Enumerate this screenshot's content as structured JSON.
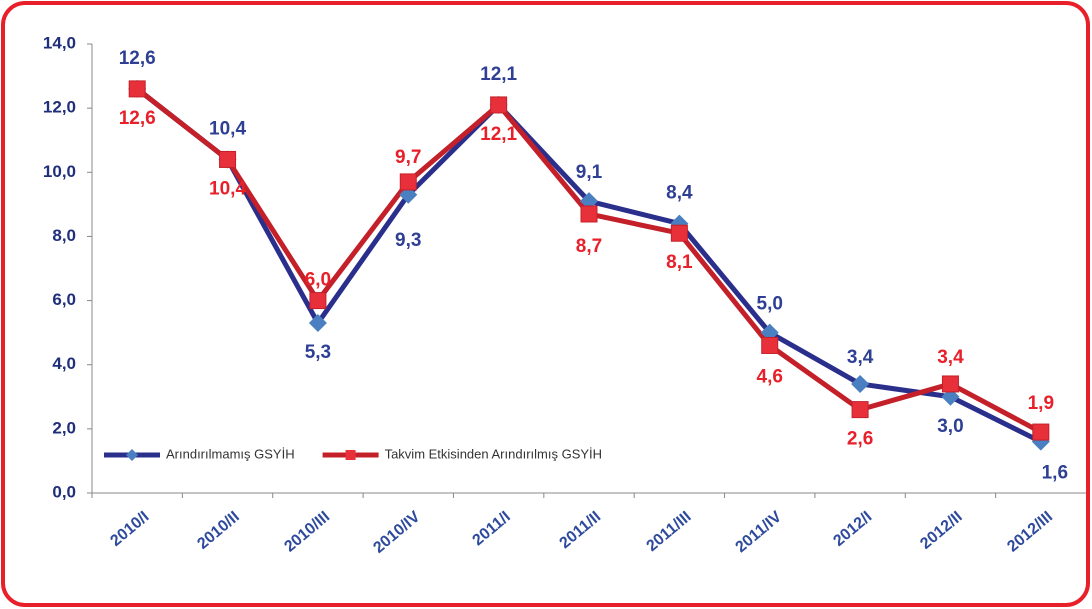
{
  "chart_data": {
    "type": "line",
    "categories": [
      "2010/I",
      "2010/II",
      "2010/III",
      "2010/IV",
      "2011/I",
      "2011/II",
      "2011/III",
      "2011/IV",
      "2012/I",
      "2012/II",
      "2012/III"
    ],
    "series": [
      {
        "name": "Arındırılmamış GSYİH",
        "color": "#2b2f8c",
        "marker_color": "#4a7fc1",
        "marker": "diamond",
        "label_color": "#2e3f94",
        "values": [
          12.6,
          10.4,
          5.3,
          9.3,
          12.1,
          9.1,
          8.4,
          5.0,
          3.4,
          3.0,
          1.6
        ],
        "value_labels": [
          "12,6",
          "10,4",
          "5,3",
          "9,3",
          "12,1",
          "9,1",
          "8,4",
          "5,0",
          "3,4",
          "3,0",
          "1,6"
        ]
      },
      {
        "name": "Takvim Etkisinden Arındırılmış GSYİH",
        "color": "#c4202a",
        "marker_color": "#e8303a",
        "marker": "square",
        "label_color": "#e8202a",
        "values": [
          12.6,
          10.4,
          6.0,
          9.7,
          12.1,
          8.7,
          8.1,
          4.6,
          2.6,
          3.4,
          1.9
        ],
        "value_labels": [
          "12,6",
          "10,4",
          "6,0",
          "9,7",
          "12,1",
          "8,7",
          "8,1",
          "4,6",
          "2,6",
          "3,4",
          "1,9"
        ]
      }
    ],
    "ylim": [
      0,
      14
    ],
    "yticks": [
      {
        "value": 0,
        "label": "0,0"
      },
      {
        "value": 2,
        "label": "2,0"
      },
      {
        "value": 4,
        "label": "4,0"
      },
      {
        "value": 6,
        "label": "6,0"
      },
      {
        "value": 8,
        "label": "8,0"
      },
      {
        "value": 10,
        "label": "10,0"
      },
      {
        "value": 12,
        "label": "12,0"
      },
      {
        "value": 14,
        "label": "14,0"
      }
    ],
    "legend": "lower left"
  }
}
